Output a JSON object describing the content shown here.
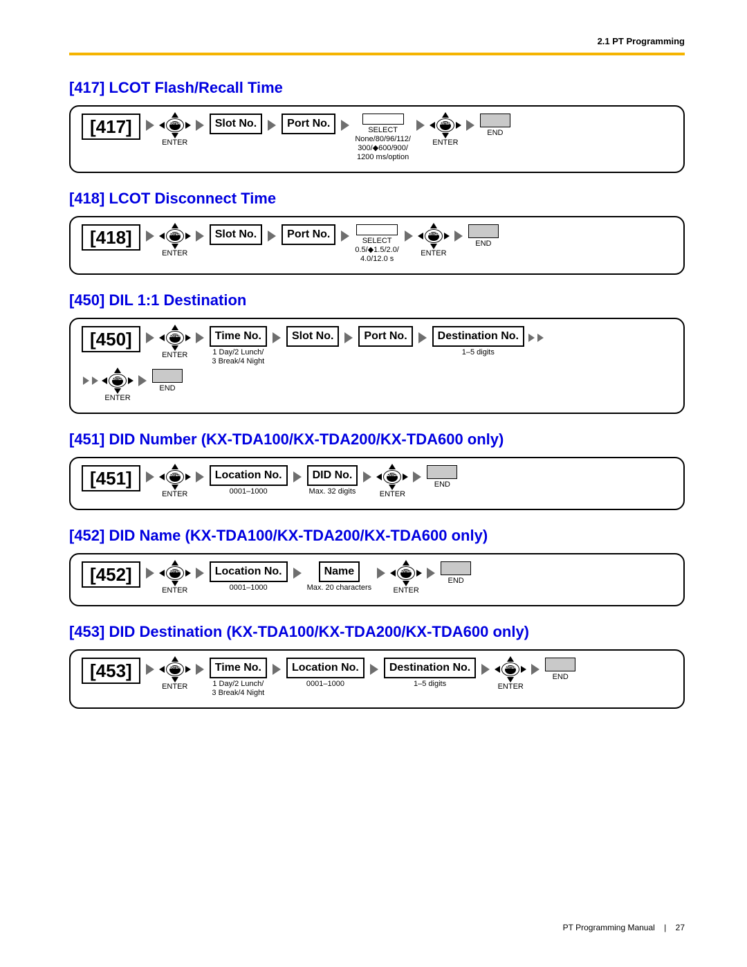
{
  "header": {
    "section": "2.1 PT Programming"
  },
  "colors": {
    "accent": "#f5b400",
    "title": "#0000e0",
    "arrow": "#6e6e6e",
    "end_fill": "#c9c9c9"
  },
  "sections": [
    {
      "title": "[417] LCOT Flash/Recall Time",
      "rows": [
        [
          {
            "type": "code",
            "text": "[417]"
          },
          {
            "type": "arrow"
          },
          {
            "type": "enter",
            "sub": "ENTER"
          },
          {
            "type": "arrow"
          },
          {
            "type": "box",
            "text": "Slot No."
          },
          {
            "type": "arrow"
          },
          {
            "type": "box",
            "text": "Port No."
          },
          {
            "type": "arrow"
          },
          {
            "type": "select",
            "sub": "SELECT",
            "sub2": "None/80/96/112/\n300/◆600/900/\n1200 ms/option"
          },
          {
            "type": "arrow"
          },
          {
            "type": "enter",
            "sub": "ENTER"
          },
          {
            "type": "arrow"
          },
          {
            "type": "end",
            "sub": "END"
          }
        ]
      ]
    },
    {
      "title": "[418] LCOT Disconnect Time",
      "rows": [
        [
          {
            "type": "code",
            "text": "[418]"
          },
          {
            "type": "arrow"
          },
          {
            "type": "enter",
            "sub": "ENTER"
          },
          {
            "type": "arrow"
          },
          {
            "type": "box",
            "text": "Slot No."
          },
          {
            "type": "arrow"
          },
          {
            "type": "box",
            "text": "Port No."
          },
          {
            "type": "arrow"
          },
          {
            "type": "select",
            "sub": "SELECT",
            "sub2": "0.5/◆1.5/2.0/\n4.0/12.0 s"
          },
          {
            "type": "arrow"
          },
          {
            "type": "enter",
            "sub": "ENTER"
          },
          {
            "type": "arrow"
          },
          {
            "type": "end",
            "sub": "END"
          }
        ]
      ]
    },
    {
      "title": "[450] DIL 1:1 Destination",
      "rows": [
        [
          {
            "type": "code",
            "text": "[450]"
          },
          {
            "type": "arrow"
          },
          {
            "type": "enter",
            "sub": "ENTER"
          },
          {
            "type": "arrow"
          },
          {
            "type": "box",
            "text": "Time No.",
            "sub": "1 Day/2 Lunch/\n3 Break/4 Night"
          },
          {
            "type": "arrow"
          },
          {
            "type": "box",
            "text": "Slot No."
          },
          {
            "type": "arrow"
          },
          {
            "type": "box",
            "text": "Port No."
          },
          {
            "type": "arrow"
          },
          {
            "type": "box",
            "text": "Destination No.",
            "sub": "1–5 digits"
          },
          {
            "type": "arrow2"
          }
        ],
        [
          {
            "type": "arrow2"
          },
          {
            "type": "enter",
            "sub": "ENTER"
          },
          {
            "type": "arrow"
          },
          {
            "type": "end",
            "sub": "END"
          }
        ]
      ]
    },
    {
      "title": "[451] DID Number (KX-TDA100/KX-TDA200/KX-TDA600 only)",
      "rows": [
        [
          {
            "type": "code",
            "text": "[451]"
          },
          {
            "type": "arrow"
          },
          {
            "type": "enter",
            "sub": "ENTER"
          },
          {
            "type": "arrow"
          },
          {
            "type": "box",
            "text": "Location No.",
            "sub": "0001–1000"
          },
          {
            "type": "arrow"
          },
          {
            "type": "box",
            "text": "DID No.",
            "sub": "Max. 32 digits"
          },
          {
            "type": "arrow"
          },
          {
            "type": "enter",
            "sub": "ENTER"
          },
          {
            "type": "arrow"
          },
          {
            "type": "end",
            "sub": "END"
          }
        ]
      ]
    },
    {
      "title": "[452] DID Name (KX-TDA100/KX-TDA200/KX-TDA600 only)",
      "rows": [
        [
          {
            "type": "code",
            "text": "[452]"
          },
          {
            "type": "arrow"
          },
          {
            "type": "enter",
            "sub": "ENTER"
          },
          {
            "type": "arrow"
          },
          {
            "type": "box",
            "text": "Location No.",
            "sub": "0001–1000"
          },
          {
            "type": "arrow"
          },
          {
            "type": "box",
            "text": "Name",
            "sub": "Max. 20 characters"
          },
          {
            "type": "arrow"
          },
          {
            "type": "enter",
            "sub": "ENTER"
          },
          {
            "type": "arrow"
          },
          {
            "type": "end",
            "sub": "END"
          }
        ]
      ]
    },
    {
      "title": "[453] DID Destination (KX-TDA100/KX-TDA200/KX-TDA600 only)",
      "rows": [
        [
          {
            "type": "code",
            "text": "[453]"
          },
          {
            "type": "arrow"
          },
          {
            "type": "enter",
            "sub": "ENTER"
          },
          {
            "type": "arrow"
          },
          {
            "type": "box",
            "text": "Time No.",
            "sub": "1 Day/2 Lunch/\n3 Break/4 Night"
          },
          {
            "type": "arrow"
          },
          {
            "type": "box",
            "text": "Location No.",
            "sub": "0001–1000"
          },
          {
            "type": "arrow"
          },
          {
            "type": "box",
            "text": "Destination No.",
            "sub": "1–5 digits"
          },
          {
            "type": "arrow"
          },
          {
            "type": "enter",
            "sub": "ENTER"
          },
          {
            "type": "arrow"
          },
          {
            "type": "end",
            "sub": "END"
          }
        ]
      ]
    }
  ],
  "footer": {
    "manual": "PT Programming Manual",
    "page": "27"
  }
}
